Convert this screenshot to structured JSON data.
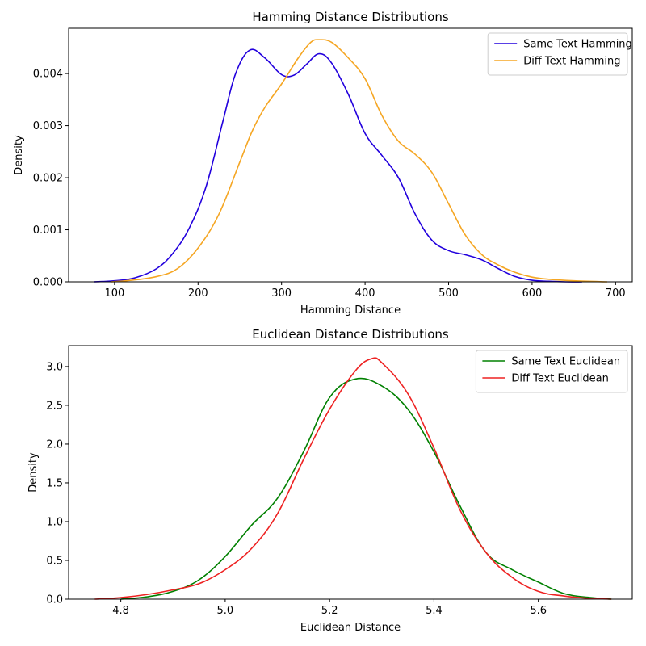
{
  "chart_data": [
    {
      "type": "line",
      "title": "Hamming Distance Distributions",
      "xlabel": "Hamming Distance",
      "ylabel": "Density",
      "xlim": [
        45,
        720
      ],
      "ylim": [
        0,
        0.00487
      ],
      "xticks": [
        100,
        200,
        300,
        400,
        500,
        600,
        700
      ],
      "yticks": [
        0,
        0.001,
        0.002,
        0.003,
        0.004
      ],
      "ytick_labels": [
        "0.000",
        "0.001",
        "0.002",
        "0.003",
        "0.004"
      ],
      "xtick_labels": [
        "100",
        "200",
        "300",
        "400",
        "500",
        "600",
        "700"
      ],
      "legend_position": "top-right",
      "grid": false,
      "series": [
        {
          "name": "Same Text Hamming",
          "color": "#2200dd",
          "x": [
            75,
            100,
            125,
            150,
            170,
            190,
            210,
            230,
            245,
            262,
            280,
            300,
            315,
            330,
            345,
            360,
            380,
            400,
            420,
            440,
            460,
            480,
            500,
            520,
            540,
            560,
            580,
            600,
            620,
            640,
            660
          ],
          "y": [
            0.0,
            2e-05,
            8e-05,
            0.00025,
            0.00055,
            0.00105,
            0.00185,
            0.0031,
            0.004,
            0.00445,
            0.0043,
            0.00398,
            0.00397,
            0.00418,
            0.00438,
            0.0042,
            0.0036,
            0.00285,
            0.00243,
            0.002,
            0.0013,
            0.0008,
            0.0006,
            0.00052,
            0.00042,
            0.00025,
            0.0001,
            3e-05,
            1e-05,
            0.0,
            0.0
          ]
        },
        {
          "name": "Diff Text Hamming",
          "color": "#f5a623",
          "x": [
            95,
            120,
            150,
            175,
            200,
            225,
            250,
            265,
            280,
            300,
            320,
            335,
            345,
            360,
            380,
            400,
            420,
            440,
            460,
            480,
            500,
            520,
            540,
            560,
            580,
            600,
            620,
            650,
            690
          ],
          "y": [
            0.0,
            3e-05,
            0.0001,
            0.00025,
            0.00065,
            0.0013,
            0.0023,
            0.0029,
            0.00335,
            0.0038,
            0.0043,
            0.0046,
            0.00465,
            0.0046,
            0.0043,
            0.0039,
            0.0032,
            0.0027,
            0.00245,
            0.0021,
            0.0015,
            0.0009,
            0.00052,
            0.00032,
            0.00018,
            9e-05,
            5e-05,
            2e-05,
            0.0
          ]
        }
      ]
    },
    {
      "type": "line",
      "title": "Euclidean Distance Distributions",
      "xlabel": "Euclidean Distance",
      "ylabel": "Density",
      "xlim": [
        4.7,
        5.78
      ],
      "ylim": [
        0,
        3.27
      ],
      "xticks": [
        4.8,
        5.0,
        5.2,
        5.4,
        5.6
      ],
      "yticks": [
        0,
        0.5,
        1.0,
        1.5,
        2.0,
        2.5,
        3.0
      ],
      "xtick_labels": [
        "4.8",
        "5.0",
        "5.2",
        "5.4",
        "5.6"
      ],
      "ytick_labels": [
        "0.0",
        "0.5",
        "1.0",
        "1.5",
        "2.0",
        "2.5",
        "3.0"
      ],
      "legend_position": "top-right",
      "grid": false,
      "series": [
        {
          "name": "Same Text Euclidean",
          "color": "#008000",
          "x": [
            4.8,
            4.85,
            4.9,
            4.95,
            5.0,
            5.05,
            5.1,
            5.15,
            5.2,
            5.25,
            5.3,
            5.35,
            5.4,
            5.45,
            5.5,
            5.55,
            5.6,
            5.65,
            5.7,
            5.74
          ],
          "y": [
            0.0,
            0.03,
            0.1,
            0.25,
            0.55,
            0.95,
            1.3,
            1.9,
            2.6,
            2.84,
            2.75,
            2.45,
            1.9,
            1.2,
            0.6,
            0.38,
            0.22,
            0.07,
            0.02,
            0.0
          ],
          "note_x_shift": false
        },
        {
          "name": "Diff Text Euclidean",
          "color": "#ee2222",
          "x": [
            4.75,
            4.8,
            4.85,
            4.9,
            4.95,
            5.0,
            5.05,
            5.1,
            5.15,
            5.2,
            5.25,
            5.28,
            5.3,
            5.35,
            5.4,
            5.45,
            5.5,
            5.55,
            5.6,
            5.65,
            5.7,
            5.74
          ],
          "y": [
            0.0,
            0.02,
            0.06,
            0.12,
            0.2,
            0.38,
            0.65,
            1.1,
            1.8,
            2.45,
            2.95,
            3.1,
            3.05,
            2.65,
            1.95,
            1.15,
            0.6,
            0.28,
            0.1,
            0.04,
            0.01,
            0.0
          ]
        }
      ]
    }
  ]
}
